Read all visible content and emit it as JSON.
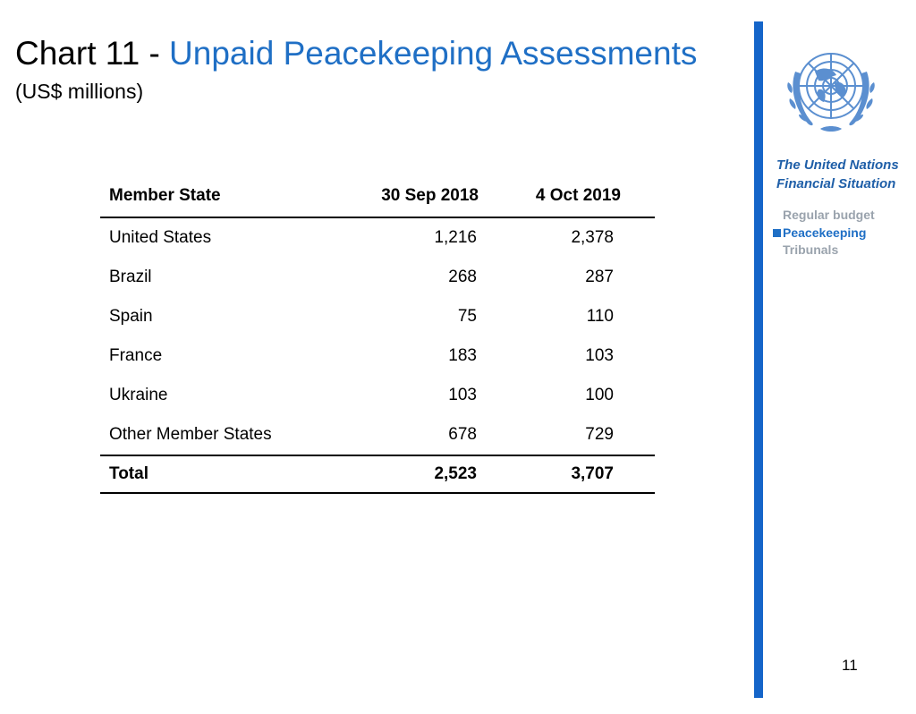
{
  "header": {
    "title_prefix": "Chart 11 - ",
    "title_main": "Unpaid Peacekeeping Assessments",
    "subtitle": "(US$ millions)"
  },
  "table": {
    "columns": [
      "Member State",
      "30 Sep 2018",
      "4 Oct 2019"
    ],
    "rows": [
      [
        "United States",
        "1,216",
        "2,378"
      ],
      [
        "Brazil",
        "268",
        "287"
      ],
      [
        "Spain",
        "75",
        "110"
      ],
      [
        "France",
        "183",
        "103"
      ],
      [
        "Ukraine",
        "103",
        "100"
      ],
      [
        "Other Member States",
        "678",
        "729"
      ]
    ],
    "total": [
      "Total",
      "2,523",
      "3,707"
    ]
  },
  "sidebar": {
    "heading_line1": "The United Nations",
    "heading_line2": "Financial Situation",
    "nav": [
      {
        "label": "Regular budget",
        "active": false
      },
      {
        "label": "Peacekeeping",
        "active": true
      },
      {
        "label": "Tribunals",
        "active": false
      }
    ]
  },
  "logo_icon": "un-emblem-icon",
  "page_number": "11",
  "colors": {
    "accent_blue": "#1f6fc5",
    "bar_blue": "#1565c9",
    "heading_blue": "#1f5fa8",
    "inactive_gray": "#9aa3ad"
  }
}
